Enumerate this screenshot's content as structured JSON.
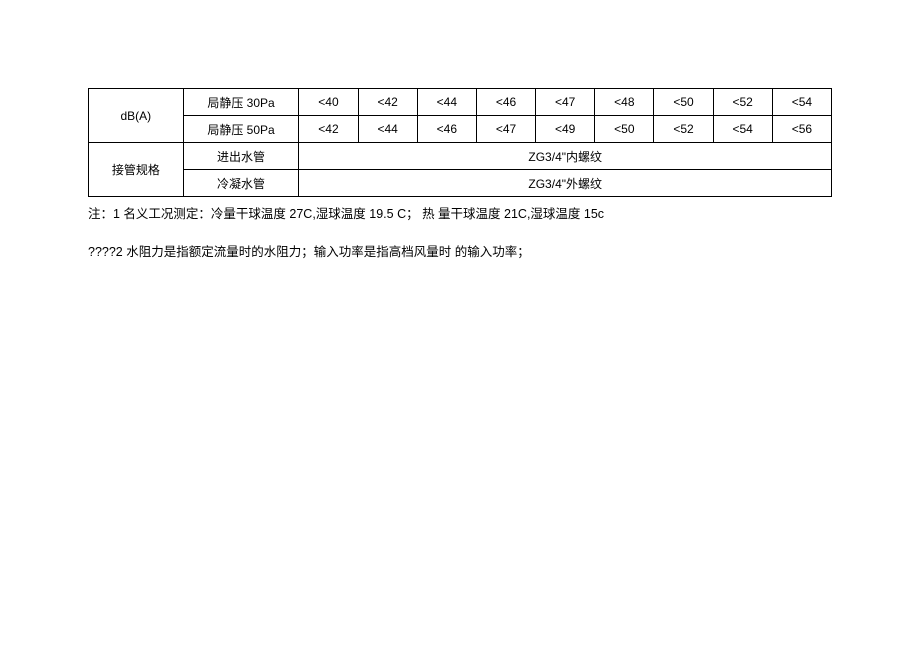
{
  "table": {
    "col0_row12": "dB(A)",
    "col0_row34": "接管规格",
    "row1_label": "局静压 30Pa",
    "row2_label": "局静压 50Pa",
    "row3_label": "进出水管",
    "row4_label": "冷凝水管",
    "row1_vals": [
      "<40",
      "<42",
      "<44",
      "<46",
      "<47",
      "<48",
      "<50",
      "<52",
      "<54"
    ],
    "row2_vals": [
      "<42",
      "<44",
      "<46",
      "<47",
      "<49",
      "<50",
      "<52",
      "<54",
      "<56"
    ],
    "row3_merged": "ZG3/4\"内螺纹",
    "row4_merged": "ZG3/4\"外螺纹"
  },
  "notes": {
    "n1": "注：1 名义工况测定：冷量干球温度 27C,湿球温度 19.5 C； 热 量干球温度 21C,湿球温度 15c",
    "n2": "????2 水阻力是指额定流量时的水阻力；输入功率是指高档风量时 的输入功率；"
  }
}
